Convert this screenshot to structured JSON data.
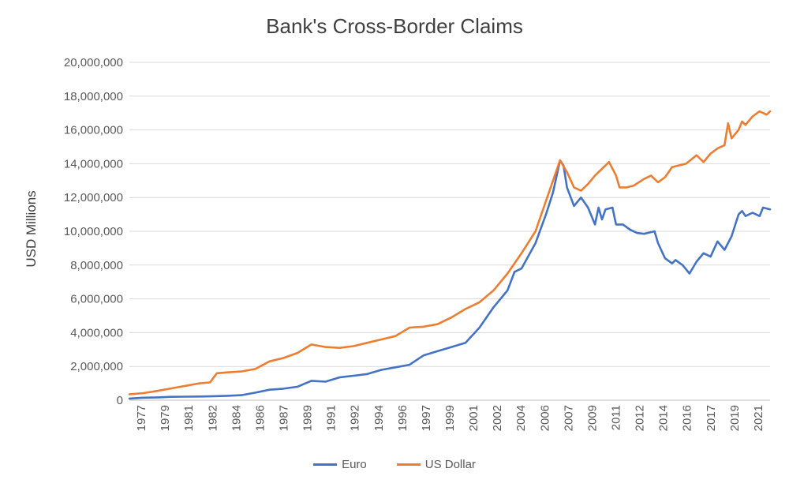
{
  "chart_data": {
    "type": "line",
    "title": "Bank's Cross-Border Claims",
    "xlabel": "",
    "ylabel": "USD Millions",
    "ylim": [
      0,
      20000000
    ],
    "yticks": [
      0,
      2000000,
      4000000,
      6000000,
      8000000,
      10000000,
      12000000,
      14000000,
      16000000,
      18000000,
      20000000
    ],
    "ytick_labels": [
      "0",
      "2,000,000",
      "4,000,000",
      "6,000,000",
      "8,000,000",
      "10,000,000",
      "12,000,000",
      "14,000,000",
      "16,000,000",
      "18,000,000",
      "20,000,000"
    ],
    "xlim": [
      1977,
      2022.75
    ],
    "xtick_labels": [
      "1977",
      "1979",
      "1981",
      "1982",
      "1984",
      "1986",
      "1987",
      "1989",
      "1991",
      "1992",
      "1994",
      "1996",
      "1997",
      "1999",
      "2001",
      "2002",
      "2004",
      "2006",
      "2007",
      "2009",
      "2011",
      "2012",
      "2014",
      "2016",
      "2017",
      "2019",
      "2021"
    ],
    "grid": "horizontal",
    "legend_position": "bottom",
    "series": [
      {
        "name": "Euro",
        "color": "#4472C4",
        "points": [
          [
            1977,
            100000
          ],
          [
            1978,
            150000
          ],
          [
            1979,
            170000
          ],
          [
            1980,
            200000
          ],
          [
            1981,
            210000
          ],
          [
            1982,
            220000
          ],
          [
            1983,
            240000
          ],
          [
            1984,
            260000
          ],
          [
            1985,
            300000
          ],
          [
            1986,
            450000
          ],
          [
            1987,
            620000
          ],
          [
            1988,
            680000
          ],
          [
            1989,
            800000
          ],
          [
            1990,
            1150000
          ],
          [
            1991,
            1100000
          ],
          [
            1992,
            1350000
          ],
          [
            1993,
            1450000
          ],
          [
            1994,
            1550000
          ],
          [
            1995,
            1800000
          ],
          [
            1996,
            1950000
          ],
          [
            1997,
            2100000
          ],
          [
            1998,
            2650000
          ],
          [
            1999,
            2900000
          ],
          [
            2000,
            3150000
          ],
          [
            2001,
            3400000
          ],
          [
            2002,
            4300000
          ],
          [
            2003,
            5500000
          ],
          [
            2004,
            6500000
          ],
          [
            2004.5,
            7600000
          ],
          [
            2005,
            7800000
          ],
          [
            2006,
            9300000
          ],
          [
            2006.75,
            11000000
          ],
          [
            2007.25,
            12300000
          ],
          [
            2007.75,
            14200000
          ],
          [
            2008,
            13900000
          ],
          [
            2008.25,
            12600000
          ],
          [
            2008.75,
            11500000
          ],
          [
            2009.25,
            12000000
          ],
          [
            2009.75,
            11400000
          ],
          [
            2010.25,
            10400000
          ],
          [
            2010.5,
            11400000
          ],
          [
            2010.75,
            10700000
          ],
          [
            2011,
            11300000
          ],
          [
            2011.5,
            11400000
          ],
          [
            2011.75,
            10400000
          ],
          [
            2012.25,
            10400000
          ],
          [
            2012.75,
            10100000
          ],
          [
            2013.25,
            9900000
          ],
          [
            2013.75,
            9850000
          ],
          [
            2014.5,
            10000000
          ],
          [
            2014.75,
            9300000
          ],
          [
            2015.25,
            8400000
          ],
          [
            2015.75,
            8100000
          ],
          [
            2016,
            8300000
          ],
          [
            2016.5,
            8000000
          ],
          [
            2017,
            7500000
          ],
          [
            2017.5,
            8200000
          ],
          [
            2018,
            8700000
          ],
          [
            2018.5,
            8500000
          ],
          [
            2019,
            9400000
          ],
          [
            2019.5,
            8900000
          ],
          [
            2020,
            9700000
          ],
          [
            2020.5,
            11000000
          ],
          [
            2020.75,
            11200000
          ],
          [
            2021,
            10900000
          ],
          [
            2021.5,
            11100000
          ],
          [
            2022,
            10900000
          ],
          [
            2022.25,
            11400000
          ],
          [
            2022.75,
            11300000
          ]
        ]
      },
      {
        "name": "US Dollar",
        "color": "#ED7D31",
        "points": [
          [
            1977,
            350000
          ],
          [
            1978,
            420000
          ],
          [
            1979,
            550000
          ],
          [
            1980,
            700000
          ],
          [
            1981,
            850000
          ],
          [
            1982,
            1000000
          ],
          [
            1982.75,
            1050000
          ],
          [
            1983.25,
            1600000
          ],
          [
            1984,
            1650000
          ],
          [
            1985,
            1700000
          ],
          [
            1986,
            1850000
          ],
          [
            1987,
            2300000
          ],
          [
            1988,
            2500000
          ],
          [
            1989,
            2800000
          ],
          [
            1990,
            3300000
          ],
          [
            1991,
            3150000
          ],
          [
            1992,
            3100000
          ],
          [
            1993,
            3200000
          ],
          [
            1994,
            3400000
          ],
          [
            1995,
            3600000
          ],
          [
            1996,
            3800000
          ],
          [
            1997,
            4300000
          ],
          [
            1998,
            4350000
          ],
          [
            1999,
            4500000
          ],
          [
            2000,
            4900000
          ],
          [
            2001,
            5400000
          ],
          [
            2002,
            5800000
          ],
          [
            2003,
            6500000
          ],
          [
            2004,
            7500000
          ],
          [
            2005,
            8700000
          ],
          [
            2006,
            10000000
          ],
          [
            2006.75,
            11800000
          ],
          [
            2007.25,
            13000000
          ],
          [
            2007.75,
            14200000
          ],
          [
            2008.25,
            13500000
          ],
          [
            2008.75,
            12600000
          ],
          [
            2009.25,
            12400000
          ],
          [
            2009.75,
            12800000
          ],
          [
            2010.25,
            13300000
          ],
          [
            2010.75,
            13700000
          ],
          [
            2011.25,
            14100000
          ],
          [
            2011.75,
            13300000
          ],
          [
            2012,
            12600000
          ],
          [
            2012.5,
            12600000
          ],
          [
            2013,
            12700000
          ],
          [
            2013.75,
            13100000
          ],
          [
            2014.25,
            13300000
          ],
          [
            2014.75,
            12900000
          ],
          [
            2015.25,
            13200000
          ],
          [
            2015.75,
            13800000
          ],
          [
            2016.25,
            13900000
          ],
          [
            2016.75,
            14000000
          ],
          [
            2017.5,
            14500000
          ],
          [
            2018,
            14100000
          ],
          [
            2018.5,
            14600000
          ],
          [
            2019,
            14900000
          ],
          [
            2019.5,
            15100000
          ],
          [
            2019.75,
            16400000
          ],
          [
            2020,
            15500000
          ],
          [
            2020.5,
            16000000
          ],
          [
            2020.75,
            16500000
          ],
          [
            2021,
            16300000
          ],
          [
            2021.5,
            16800000
          ],
          [
            2022,
            17100000
          ],
          [
            2022.5,
            16900000
          ],
          [
            2022.75,
            17100000
          ]
        ]
      }
    ]
  }
}
